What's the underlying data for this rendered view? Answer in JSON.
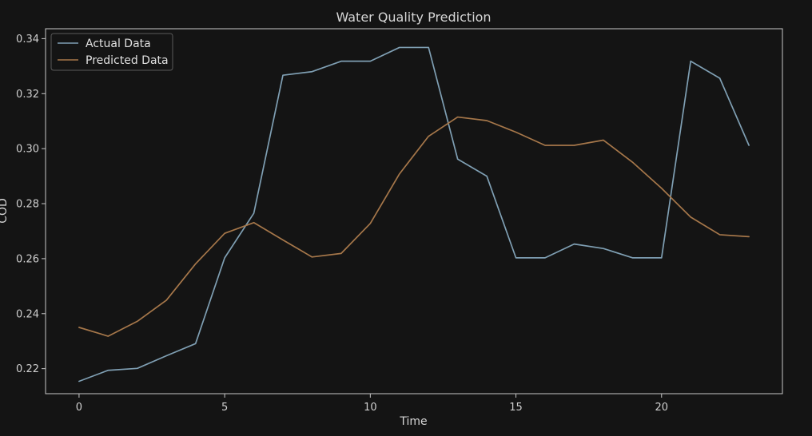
{
  "chart_data": {
    "type": "line",
    "title": "Water Quality Prediction",
    "xlabel": "Time",
    "ylabel": "COD",
    "xlim": [
      -1.15,
      24.15
    ],
    "ylim": [
      0.2109,
      0.3436
    ],
    "xticks": [
      0,
      5,
      10,
      15,
      20
    ],
    "yticks": [
      0.22,
      0.24,
      0.26,
      0.28,
      0.3,
      0.32,
      0.34
    ],
    "ytick_labels": [
      "0.22",
      "0.24",
      "0.26",
      "0.28",
      "0.30",
      "0.32",
      "0.34"
    ],
    "grid": false,
    "legend_position": "top-left",
    "x": [
      0,
      1,
      2,
      3,
      4,
      5,
      6,
      7,
      8,
      9,
      10,
      11,
      12,
      13,
      14,
      15,
      16,
      17,
      18,
      19,
      20,
      21,
      22,
      23
    ],
    "series": [
      {
        "name": "Actual Data",
        "color": "#7f9fb3",
        "values": [
          0.2154,
          0.2194,
          0.2201,
          0.2247,
          0.2291,
          0.2603,
          0.2765,
          0.3267,
          0.328,
          0.3318,
          0.3318,
          0.3368,
          0.3368,
          0.2962,
          0.29,
          0.2603,
          0.2603,
          0.2653,
          0.2637,
          0.2603,
          0.2603,
          0.3318,
          0.3256,
          0.3012
        ]
      },
      {
        "name": "Predicted Data",
        "color": "#a6774a",
        "values": [
          0.235,
          0.2318,
          0.2372,
          0.2449,
          0.2581,
          0.2692,
          0.2731,
          0.2668,
          0.2606,
          0.2619,
          0.2728,
          0.2908,
          0.3045,
          0.3115,
          0.3102,
          0.306,
          0.3012,
          0.3012,
          0.3031,
          0.2951,
          0.2856,
          0.2751,
          0.2687,
          0.268
        ]
      }
    ]
  }
}
